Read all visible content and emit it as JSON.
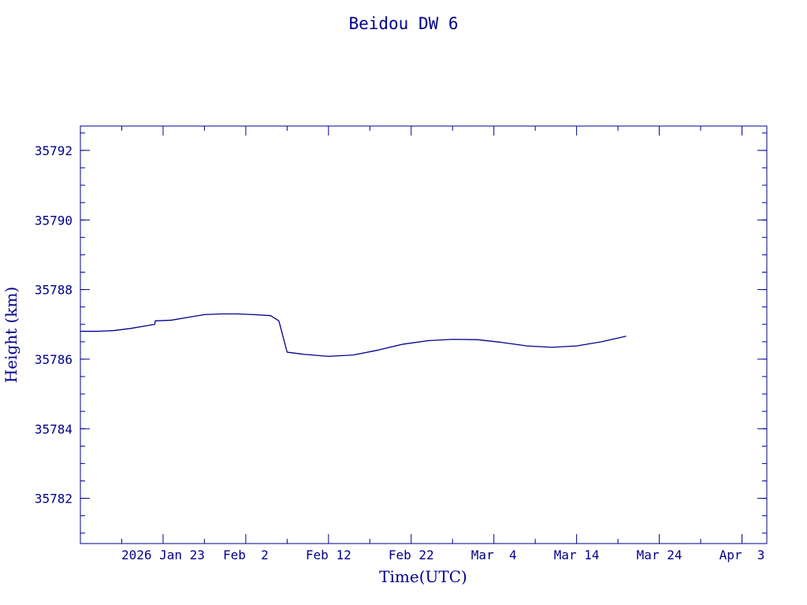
{
  "chart_data": {
    "type": "line",
    "title": "Beidou DW 6",
    "xlabel": "Time(UTC)",
    "ylabel": "Height (km)",
    "xlim": [
      "2026-01-13",
      "2026-04-06"
    ],
    "ylim": [
      35780.7,
      35792.7
    ],
    "y_ticks": [
      35782,
      35784,
      35786,
      35788,
      35790,
      35792
    ],
    "y_tick_labels": [
      "35782",
      "35784",
      "35786",
      "35788",
      "35790",
      "35792"
    ],
    "x_ticks": [
      "2026-01-23",
      "2026-02-02",
      "2026-02-12",
      "2026-02-22",
      "2026-03-04",
      "2026-03-14",
      "2026-03-24",
      "2026-04-03"
    ],
    "x_tick_labels": [
      "2026 Jan 23",
      "Feb  2",
      "Feb 12",
      "Feb 22",
      "Mar  4",
      "Mar 14",
      "Mar 24",
      "Apr  3"
    ],
    "grid": false,
    "series": [
      {
        "x": [
          "2026-01-13",
          "2026-01-15",
          "2026-01-17",
          "2026-01-19",
          "2026-01-21",
          "2026-01-22",
          "2026-01-22",
          "2026-01-24",
          "2026-01-26",
          "2026-01-28",
          "2026-01-30",
          "2026-02-01",
          "2026-02-03",
          "2026-02-05",
          "2026-02-06",
          "2026-02-07",
          "2026-02-09",
          "2026-02-12",
          "2026-02-15",
          "2026-02-18",
          "2026-02-21",
          "2026-02-24",
          "2026-02-27",
          "2026-03-02",
          "2026-03-05",
          "2026-03-08",
          "2026-03-11",
          "2026-03-14",
          "2026-03-17",
          "2026-03-20"
        ],
        "y": [
          35786.8,
          35786.8,
          35786.82,
          35786.88,
          35786.96,
          35787.0,
          35787.1,
          35787.12,
          35787.2,
          35787.28,
          35787.3,
          35787.3,
          35787.28,
          35787.25,
          35787.1,
          35786.2,
          35786.14,
          35786.08,
          35786.12,
          35786.26,
          35786.43,
          35786.53,
          35786.57,
          35786.56,
          35786.48,
          35786.38,
          35786.34,
          35786.38,
          35786.5,
          35786.66
        ]
      }
    ]
  }
}
